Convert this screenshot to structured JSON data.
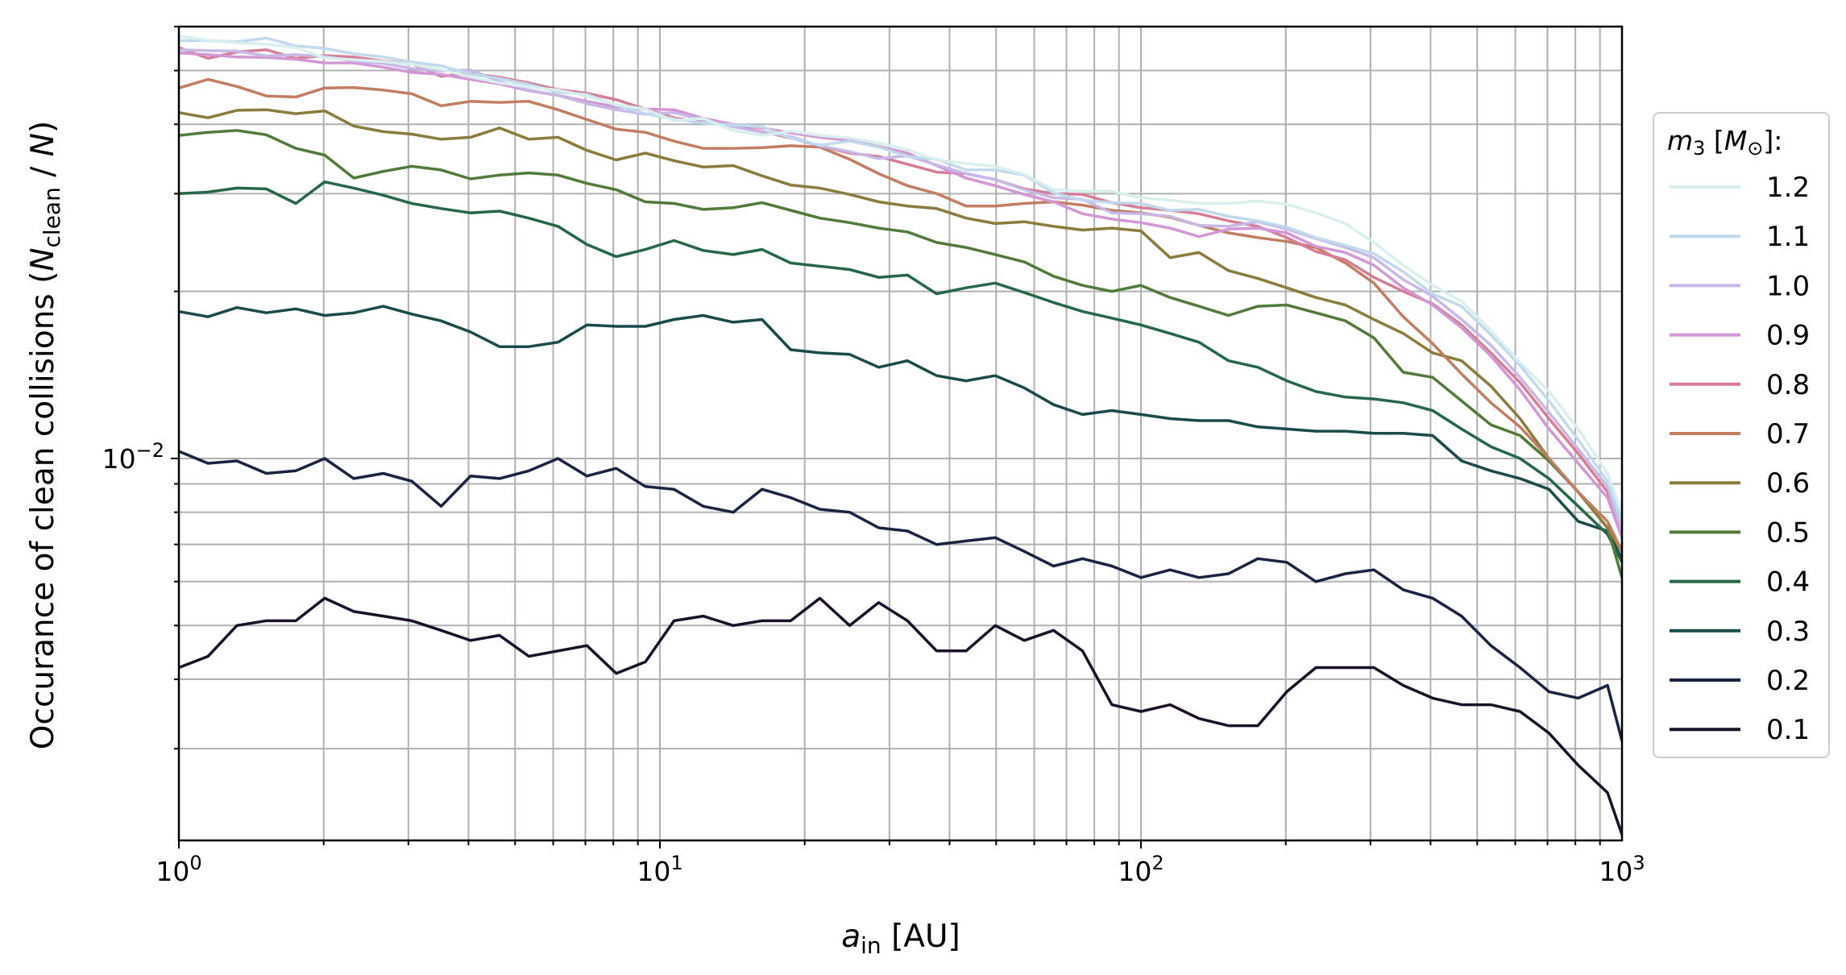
{
  "chart_data": {
    "type": "line",
    "x_scale": "log",
    "y_scale": "log",
    "xlim": [
      1,
      1000
    ],
    "ylim": [
      0.00205,
      0.06
    ],
    "grid": true,
    "grid_minor": true,
    "legend_position": "right",
    "xlabel": {
      "main": "a",
      "sub": "in",
      "rest": " [AU]"
    },
    "ylabel": {
      "pre": "Occurance of clean collisions (",
      "n1": "N",
      "n1sub": "clean",
      "mid": " / ",
      "n2": "N",
      "post": ")"
    },
    "x_ticks": [
      {
        "value": 1,
        "base": "10",
        "exp": "0"
      },
      {
        "value": 10,
        "base": "10",
        "exp": "1"
      },
      {
        "value": 100,
        "base": "10",
        "exp": "2"
      },
      {
        "value": 1000,
        "base": "10",
        "exp": "3"
      }
    ],
    "y_ticks": [
      {
        "value": 0.01,
        "base": "10",
        "exp": "−2"
      }
    ],
    "legend_title": {
      "m": "m",
      "msub": "3",
      "rest1": " [",
      "M": "M",
      "Msub": "⊙",
      "rest2": "]:"
    },
    "x": [
      1,
      1.15,
      1.32,
      1.52,
      1.75,
      2.01,
      2.31,
      2.66,
      3.05,
      3.51,
      4.04,
      4.64,
      5.34,
      6.14,
      7.05,
      8.11,
      9.33,
      10.7,
      12.3,
      14.2,
      16.3,
      18.7,
      21.5,
      24.8,
      28.5,
      32.7,
      37.6,
      43.3,
      49.8,
      57.2,
      65.8,
      75.6,
      87,
      100,
      115,
      132,
      152,
      175,
      201,
      231,
      266,
      305,
      351,
      404,
      464,
      534,
      614,
      705,
      811,
      933,
      1000
    ],
    "series": [
      {
        "name": "1.2",
        "color": "#d9efee",
        "values": [
          0.0577,
          0.0567,
          0.0561,
          0.0558,
          0.055,
          0.0527,
          0.0523,
          0.0519,
          0.0513,
          0.0502,
          0.0487,
          0.0475,
          0.0467,
          0.0461,
          0.045,
          0.0434,
          0.0426,
          0.0406,
          0.041,
          0.039,
          0.0382,
          0.0389,
          0.0382,
          0.0378,
          0.037,
          0.036,
          0.0345,
          0.034,
          0.0336,
          0.0325,
          0.0305,
          0.0303,
          0.0303,
          0.0295,
          0.0292,
          0.0288,
          0.0288,
          0.0291,
          0.0287,
          0.0277,
          0.0265,
          0.0245,
          0.0223,
          0.0205,
          0.0192,
          0.017,
          0.0149,
          0.0132,
          0.0113,
          0.0094,
          0.008
        ]
      },
      {
        "name": "1.1",
        "color": "#c0d9ec",
        "values": [
          0.0566,
          0.0566,
          0.0563,
          0.0572,
          0.0554,
          0.0548,
          0.0536,
          0.0529,
          0.0518,
          0.051,
          0.0493,
          0.0484,
          0.0472,
          0.0457,
          0.0453,
          0.0433,
          0.0418,
          0.0409,
          0.0402,
          0.0399,
          0.0396,
          0.0378,
          0.0367,
          0.0373,
          0.0364,
          0.035,
          0.0346,
          0.0331,
          0.0331,
          0.0324,
          0.0301,
          0.0292,
          0.0289,
          0.0288,
          0.028,
          0.0281,
          0.0273,
          0.0268,
          0.0261,
          0.025,
          0.0242,
          0.0234,
          0.0217,
          0.0198,
          0.0188,
          0.0167,
          0.0147,
          0.0127,
          0.0108,
          0.0091,
          0.0077
        ]
      },
      {
        "name": "1.0",
        "color": "#c8b8e6",
        "values": [
          0.0545,
          0.0543,
          0.0542,
          0.0531,
          0.0534,
          0.053,
          0.052,
          0.0515,
          0.0504,
          0.0499,
          0.0501,
          0.0478,
          0.0461,
          0.0451,
          0.0436,
          0.0425,
          0.0417,
          0.042,
          0.0407,
          0.0396,
          0.0387,
          0.038,
          0.0366,
          0.0357,
          0.0347,
          0.0351,
          0.0338,
          0.0326,
          0.0318,
          0.0305,
          0.0295,
          0.0293,
          0.0277,
          0.0276,
          0.0273,
          0.0263,
          0.0262,
          0.0267,
          0.0259,
          0.0249,
          0.024,
          0.023,
          0.021,
          0.0196,
          0.0178,
          0.016,
          0.014,
          0.0121,
          0.0104,
          0.0089,
          0.0074
        ]
      },
      {
        "name": "0.9",
        "color": "#d297d4",
        "values": [
          0.0538,
          0.0534,
          0.0529,
          0.0528,
          0.0524,
          0.0516,
          0.0516,
          0.0507,
          0.0496,
          0.0492,
          0.0482,
          0.0473,
          0.046,
          0.0451,
          0.044,
          0.043,
          0.0426,
          0.0425,
          0.041,
          0.04,
          0.0394,
          0.0386,
          0.0379,
          0.0374,
          0.0365,
          0.0355,
          0.0337,
          0.032,
          0.031,
          0.0299,
          0.029,
          0.0276,
          0.027,
          0.0266,
          0.026,
          0.0251,
          0.0259,
          0.026,
          0.0255,
          0.0241,
          0.0235,
          0.0223,
          0.0203,
          0.0189,
          0.0172,
          0.0153,
          0.0133,
          0.0113,
          0.0098,
          0.0085,
          0.0072
        ]
      },
      {
        "name": "0.8",
        "color": "#d67e98",
        "values": [
          0.055,
          0.0526,
          0.054,
          0.0545,
          0.0526,
          0.0532,
          0.0529,
          0.052,
          0.0514,
          0.0488,
          0.0494,
          0.0486,
          0.0475,
          0.0462,
          0.0455,
          0.0443,
          0.0426,
          0.0411,
          0.0403,
          0.0398,
          0.0388,
          0.0378,
          0.0366,
          0.0355,
          0.035,
          0.0339,
          0.0328,
          0.0326,
          0.0318,
          0.0306,
          0.03,
          0.0299,
          0.0289,
          0.0283,
          0.028,
          0.0276,
          0.0268,
          0.0262,
          0.025,
          0.0236,
          0.0228,
          0.0212,
          0.02,
          0.019,
          0.0174,
          0.0155,
          0.0137,
          0.0118,
          0.0102,
          0.0087,
          0.0073
        ]
      },
      {
        "name": "0.7",
        "color": "#c17e62",
        "values": [
          0.0465,
          0.0482,
          0.0468,
          0.045,
          0.0448,
          0.0465,
          0.0466,
          0.0461,
          0.0454,
          0.0432,
          0.044,
          0.0438,
          0.044,
          0.0425,
          0.0408,
          0.0392,
          0.0387,
          0.0373,
          0.0362,
          0.0362,
          0.0363,
          0.0366,
          0.0364,
          0.0346,
          0.0326,
          0.031,
          0.03,
          0.0285,
          0.0285,
          0.0288,
          0.029,
          0.0286,
          0.028,
          0.0277,
          0.0272,
          0.0263,
          0.0255,
          0.025,
          0.0246,
          0.024,
          0.0225,
          0.0207,
          0.018,
          0.0161,
          0.0142,
          0.0126,
          0.0114,
          0.01,
          0.0087,
          0.0077,
          0.0068
        ]
      },
      {
        "name": "0.6",
        "color": "#8a7c3c",
        "values": [
          0.042,
          0.0411,
          0.0424,
          0.0425,
          0.0418,
          0.0423,
          0.0397,
          0.0388,
          0.0384,
          0.0376,
          0.0379,
          0.0394,
          0.0376,
          0.0379,
          0.0359,
          0.0345,
          0.0355,
          0.0344,
          0.0335,
          0.0337,
          0.0323,
          0.0311,
          0.0307,
          0.0299,
          0.029,
          0.0285,
          0.0282,
          0.0271,
          0.0265,
          0.0267,
          0.0262,
          0.0258,
          0.026,
          0.0257,
          0.023,
          0.0235,
          0.0218,
          0.0211,
          0.0203,
          0.0195,
          0.0189,
          0.0178,
          0.0168,
          0.0155,
          0.015,
          0.0135,
          0.0118,
          0.01,
          0.0087,
          0.0075,
          0.0068
        ]
      },
      {
        "name": "0.5",
        "color": "#527a3a",
        "values": [
          0.0382,
          0.0387,
          0.039,
          0.0383,
          0.0362,
          0.0352,
          0.032,
          0.0329,
          0.0336,
          0.0331,
          0.0319,
          0.0324,
          0.0327,
          0.0324,
          0.0313,
          0.0305,
          0.029,
          0.0288,
          0.0281,
          0.0283,
          0.0289,
          0.028,
          0.0271,
          0.0266,
          0.026,
          0.0256,
          0.0245,
          0.024,
          0.0233,
          0.0226,
          0.0213,
          0.0205,
          0.02,
          0.0205,
          0.0195,
          0.0188,
          0.0181,
          0.0188,
          0.0189,
          0.0183,
          0.0177,
          0.0165,
          0.0143,
          0.014,
          0.0127,
          0.0115,
          0.011,
          0.0099,
          0.0087,
          0.0075,
          0.0061
        ]
      },
      {
        "name": "0.4",
        "color": "#26674a",
        "values": [
          0.03,
          0.0302,
          0.0307,
          0.0306,
          0.0288,
          0.0315,
          0.0307,
          0.0298,
          0.0288,
          0.0282,
          0.0277,
          0.0279,
          0.0271,
          0.0262,
          0.0243,
          0.0231,
          0.0238,
          0.0247,
          0.0237,
          0.0233,
          0.0238,
          0.0225,
          0.0222,
          0.0219,
          0.0212,
          0.0214,
          0.0198,
          0.0203,
          0.0207,
          0.0199,
          0.0191,
          0.0184,
          0.0179,
          0.0174,
          0.0168,
          0.0162,
          0.015,
          0.0146,
          0.0138,
          0.0132,
          0.0129,
          0.0128,
          0.0126,
          0.0122,
          0.0113,
          0.0105,
          0.01,
          0.0092,
          0.0082,
          0.0073,
          0.0065
        ]
      },
      {
        "name": "0.3",
        "color": "#1a4a4a",
        "values": [
          0.0184,
          0.018,
          0.0187,
          0.0183,
          0.0186,
          0.0181,
          0.0183,
          0.0188,
          0.0182,
          0.0177,
          0.0169,
          0.0159,
          0.0159,
          0.0162,
          0.0174,
          0.0173,
          0.0173,
          0.0178,
          0.0181,
          0.0176,
          0.0178,
          0.0157,
          0.0155,
          0.0154,
          0.0146,
          0.015,
          0.0141,
          0.0138,
          0.0141,
          0.0134,
          0.0125,
          0.012,
          0.0122,
          0.012,
          0.0118,
          0.0117,
          0.0117,
          0.0114,
          0.0113,
          0.0112,
          0.0112,
          0.0111,
          0.0111,
          0.011,
          0.0099,
          0.0095,
          0.0092,
          0.0088,
          0.0077,
          0.0074,
          0.0066
        ]
      },
      {
        "name": "0.2",
        "color": "#1b2342",
        "values": [
          0.0103,
          0.0098,
          0.0099,
          0.0094,
          0.0095,
          0.01,
          0.0092,
          0.0094,
          0.0091,
          0.0082,
          0.0093,
          0.0092,
          0.0095,
          0.01,
          0.0093,
          0.0096,
          0.0089,
          0.0088,
          0.0082,
          0.008,
          0.0088,
          0.0085,
          0.0081,
          0.008,
          0.0075,
          0.0074,
          0.007,
          0.0071,
          0.0072,
          0.0068,
          0.0064,
          0.0066,
          0.0064,
          0.0061,
          0.0063,
          0.0061,
          0.0062,
          0.0066,
          0.0065,
          0.006,
          0.0062,
          0.0063,
          0.0058,
          0.0056,
          0.0052,
          0.0046,
          0.0042,
          0.0038,
          0.0037,
          0.0039,
          0.0031
        ]
      },
      {
        "name": "0.1",
        "color": "#1a1027",
        "values": [
          0.0042,
          0.0044,
          0.005,
          0.0051,
          0.0051,
          0.0056,
          0.0053,
          0.0052,
          0.0051,
          0.0049,
          0.0047,
          0.0048,
          0.0044,
          0.0045,
          0.0046,
          0.0041,
          0.0043,
          0.0051,
          0.0052,
          0.005,
          0.0051,
          0.0051,
          0.0056,
          0.005,
          0.0055,
          0.0051,
          0.0045,
          0.0045,
          0.005,
          0.0047,
          0.0049,
          0.0045,
          0.0036,
          0.0035,
          0.0036,
          0.0034,
          0.0033,
          0.0033,
          0.0038,
          0.0042,
          0.0042,
          0.0042,
          0.0039,
          0.0037,
          0.0036,
          0.0036,
          0.0035,
          0.0032,
          0.0028,
          0.0025,
          0.0021
        ]
      }
    ]
  }
}
